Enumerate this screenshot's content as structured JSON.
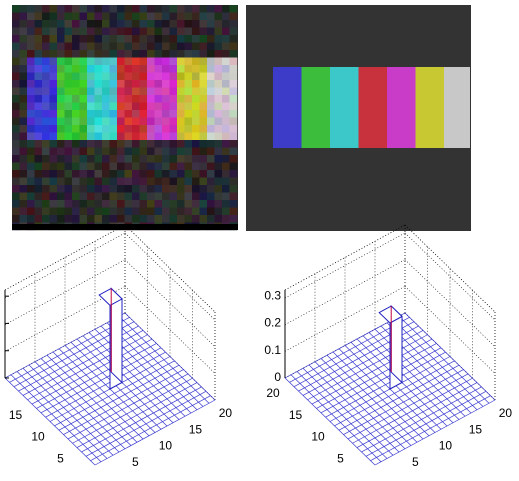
{
  "plots": [
    {
      "x_ticks": [
        "5",
        "10",
        "15",
        "20"
      ],
      "y_ticks": [
        "15",
        "10",
        "5"
      ]
    },
    {
      "x_ticks": [
        "5",
        "10",
        "15",
        "20"
      ],
      "y_ticks": [
        "20",
        "15",
        "10",
        "5"
      ],
      "z_ticks": [
        "0.3",
        "0.2",
        "0.1",
        "0"
      ]
    }
  ]
}
